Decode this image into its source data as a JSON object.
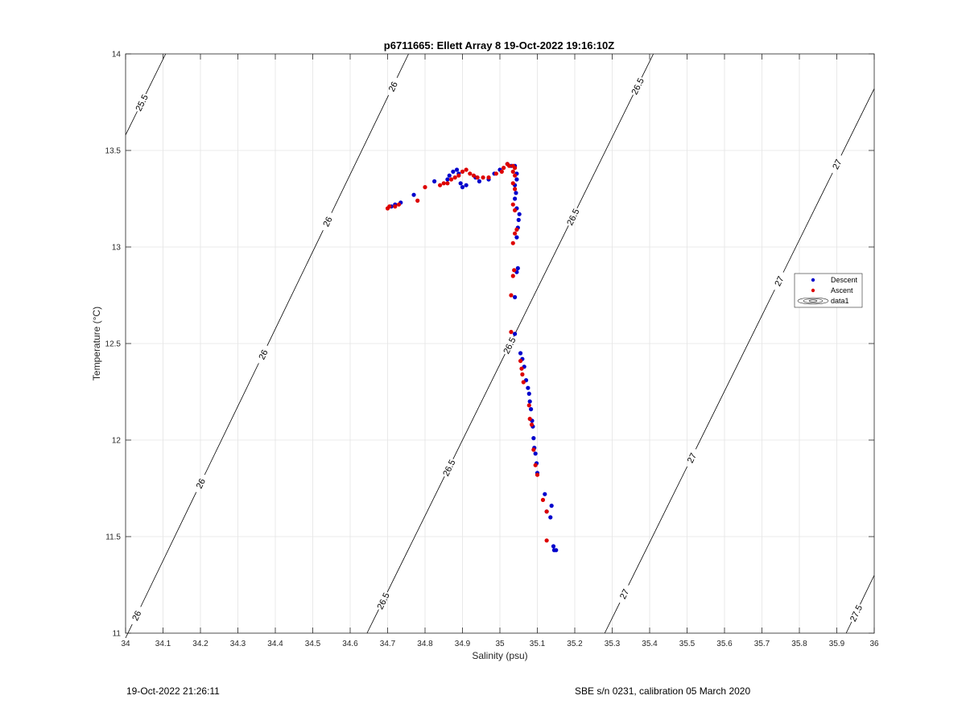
{
  "chart_data": {
    "type": "scatter",
    "title": "p6711665: Ellett Array 8 19-Oct-2022 19:16:10Z",
    "xlabel": "Salinity (psu)",
    "ylabel": "Temperature (°C)",
    "xlim": [
      34,
      36
    ],
    "ylim": [
      11,
      14
    ],
    "xticks": [
      34,
      34.1,
      34.2,
      34.3,
      34.4,
      34.5,
      34.6,
      34.7,
      34.8,
      34.9,
      35,
      35.1,
      35.2,
      35.3,
      35.4,
      35.5,
      35.6,
      35.7,
      35.8,
      35.9,
      36
    ],
    "xtick_labels": [
      "34",
      "34.1",
      "34.2",
      "34.3",
      "34.4",
      "34.5",
      "34.6",
      "34.7",
      "34.8",
      "34.9",
      "35",
      "35.1",
      "35.2",
      "35.3",
      "35.4",
      "35.5",
      "35.6",
      "35.7",
      "35.8",
      "35.9",
      "36"
    ],
    "yticks": [
      11,
      11.5,
      12,
      12.5,
      13,
      13.5,
      14
    ],
    "ytick_labels": [
      "11",
      "11.5",
      "12",
      "12.5",
      "13",
      "13.5",
      "14"
    ],
    "grid": true,
    "legend_position": "right",
    "legend": [
      "Descent",
      "Ascent",
      "data1"
    ],
    "contours": [
      {
        "label": "25.5",
        "points": [
          [
            34.0,
            13.58
          ],
          [
            34.107,
            14.0
          ]
        ],
        "label_at": [
          [
            34.04,
            13.75
          ]
        ]
      },
      {
        "label": "26",
        "points": [
          [
            34.0,
            10.975
          ],
          [
            34.756,
            14.0
          ]
        ],
        "label_at": [
          [
            34.03,
            11.09
          ],
          [
            34.195,
            11.78
          ],
          [
            34.36,
            12.45
          ],
          [
            34.53,
            13.14
          ],
          [
            34.715,
            13.83
          ]
        ]
      },
      {
        "label": "26.5",
        "points": [
          [
            34.645,
            11.0
          ],
          [
            35.41,
            14.0
          ]
        ],
        "label_at": [
          [
            34.685,
            11.17
          ],
          [
            34.86,
            11.86
          ],
          [
            35.015,
            12.5
          ],
          [
            35.18,
            13.17
          ],
          [
            35.36,
            13.84
          ]
        ]
      },
      {
        "label": "27",
        "points": [
          [
            35.28,
            11.0
          ],
          [
            36.0,
            13.82
          ]
        ],
        "label_at": [
          [
            35.335,
            11.2
          ],
          [
            35.52,
            11.9
          ],
          [
            35.77,
            12.8
          ],
          [
            35.93,
            13.4
          ]
        ]
      },
      {
        "label": "27.5",
        "points": [
          [
            35.925,
            11.0
          ],
          [
            36.0,
            11.3
          ]
        ],
        "label_at": [
          [
            35.955,
            11.1
          ]
        ]
      }
    ],
    "series": [
      {
        "name": "Descent",
        "color": "#0000cc",
        "points": [
          [
            35.15,
            11.43
          ],
          [
            35.145,
            11.43
          ],
          [
            35.143,
            11.45
          ],
          [
            35.135,
            11.6
          ],
          [
            35.138,
            11.66
          ],
          [
            35.125,
            11.63
          ],
          [
            35.12,
            11.72
          ],
          [
            35.1,
            11.83
          ],
          [
            35.098,
            11.88
          ],
          [
            35.095,
            11.93
          ],
          [
            35.092,
            11.96
          ],
          [
            35.09,
            12.01
          ],
          [
            35.088,
            12.07
          ],
          [
            35.086,
            12.1
          ],
          [
            35.083,
            12.16
          ],
          [
            35.08,
            12.2
          ],
          [
            35.078,
            12.24
          ],
          [
            35.075,
            12.27
          ],
          [
            35.07,
            12.31
          ],
          [
            35.065,
            12.38
          ],
          [
            35.06,
            12.42
          ],
          [
            35.055,
            12.45
          ],
          [
            35.04,
            12.55
          ],
          [
            35.04,
            12.74
          ],
          [
            35.045,
            12.87
          ],
          [
            35.048,
            12.89
          ],
          [
            35.045,
            13.05
          ],
          [
            35.048,
            13.1
          ],
          [
            35.05,
            13.14
          ],
          [
            35.052,
            13.17
          ],
          [
            35.045,
            13.2
          ],
          [
            35.04,
            13.25
          ],
          [
            35.043,
            13.28
          ],
          [
            35.04,
            13.32
          ],
          [
            35.045,
            13.35
          ],
          [
            35.045,
            13.38
          ],
          [
            35.04,
            13.42
          ],
          [
            35.03,
            13.42
          ],
          [
            35.02,
            13.43
          ],
          [
            35.0,
            13.4
          ],
          [
            34.985,
            13.38
          ],
          [
            34.97,
            13.35
          ],
          [
            34.945,
            13.34
          ],
          [
            34.935,
            13.36
          ],
          [
            34.91,
            13.32
          ],
          [
            34.9,
            13.31
          ],
          [
            34.895,
            13.33
          ],
          [
            34.89,
            13.38
          ],
          [
            34.885,
            13.4
          ],
          [
            34.875,
            13.39
          ],
          [
            34.865,
            13.37
          ],
          [
            34.86,
            13.35
          ],
          [
            34.825,
            13.34
          ],
          [
            34.77,
            13.27
          ],
          [
            34.735,
            13.23
          ],
          [
            34.72,
            13.22
          ],
          [
            34.71,
            13.21
          ]
        ]
      },
      {
        "name": "Ascent",
        "color": "#dd0000",
        "points": [
          [
            35.125,
            11.48
          ],
          [
            35.125,
            11.63
          ],
          [
            35.115,
            11.69
          ],
          [
            35.1,
            11.82
          ],
          [
            35.095,
            11.87
          ],
          [
            35.09,
            11.95
          ],
          [
            35.085,
            12.08
          ],
          [
            35.08,
            12.11
          ],
          [
            35.078,
            12.18
          ],
          [
            35.063,
            12.3
          ],
          [
            35.06,
            12.34
          ],
          [
            35.058,
            12.37
          ],
          [
            35.055,
            12.41
          ],
          [
            35.03,
            12.56
          ],
          [
            35.03,
            12.75
          ],
          [
            35.035,
            12.85
          ],
          [
            35.038,
            12.88
          ],
          [
            35.035,
            13.02
          ],
          [
            35.04,
            13.07
          ],
          [
            35.045,
            13.09
          ],
          [
            35.04,
            13.19
          ],
          [
            35.035,
            13.22
          ],
          [
            35.04,
            13.3
          ],
          [
            35.035,
            13.33
          ],
          [
            35.04,
            13.37
          ],
          [
            35.035,
            13.39
          ],
          [
            35.04,
            13.41
          ],
          [
            35.035,
            13.42
          ],
          [
            35.025,
            13.42
          ],
          [
            35.02,
            13.43
          ],
          [
            35.01,
            13.41
          ],
          [
            35.005,
            13.39
          ],
          [
            34.99,
            13.38
          ],
          [
            34.97,
            13.36
          ],
          [
            34.955,
            13.36
          ],
          [
            34.94,
            13.36
          ],
          [
            34.93,
            13.37
          ],
          [
            34.92,
            13.38
          ],
          [
            34.91,
            13.4
          ],
          [
            34.9,
            13.39
          ],
          [
            34.89,
            13.37
          ],
          [
            34.88,
            13.36
          ],
          [
            34.87,
            13.35
          ],
          [
            34.86,
            13.33
          ],
          [
            34.85,
            13.33
          ],
          [
            34.84,
            13.32
          ],
          [
            34.8,
            13.31
          ],
          [
            34.78,
            13.24
          ],
          [
            34.73,
            13.22
          ],
          [
            34.72,
            13.21
          ],
          [
            34.7,
            13.2
          ],
          [
            34.705,
            13.21
          ]
        ]
      }
    ]
  },
  "footer": {
    "timestamp": "19-Oct-2022 21:26:11",
    "instrument": "SBE s/n 0231, calibration 05 March 2020"
  }
}
